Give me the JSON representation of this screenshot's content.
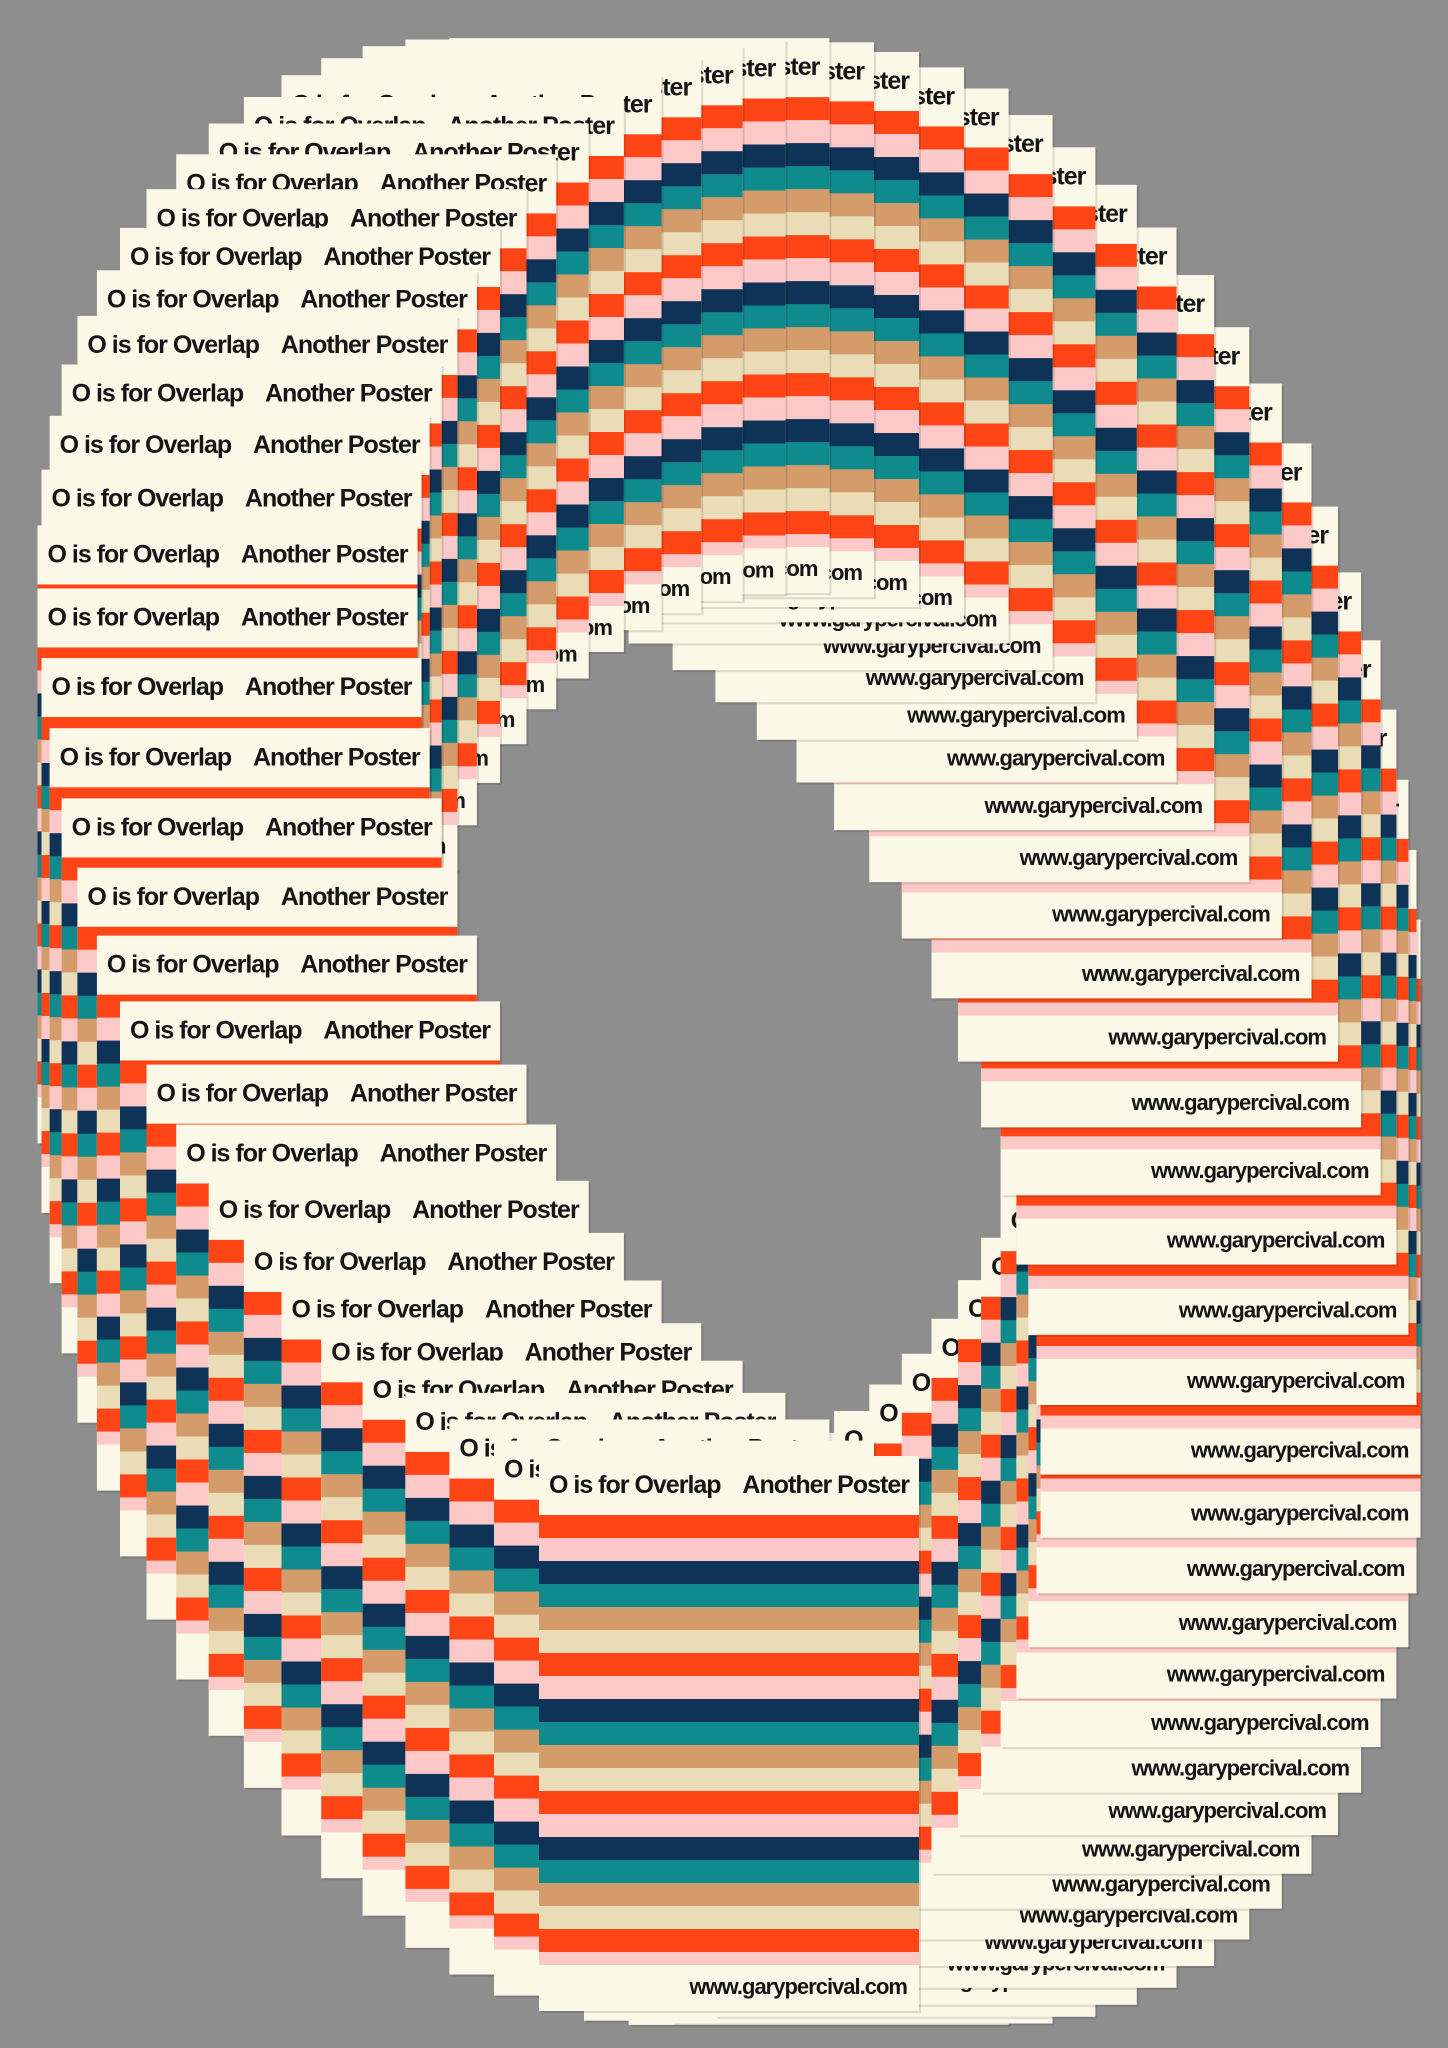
{
  "poster": {
    "card_title": "O is for Overlap",
    "card_subtitle": "Another Poster",
    "url": "www.garypercival.com"
  }
}
